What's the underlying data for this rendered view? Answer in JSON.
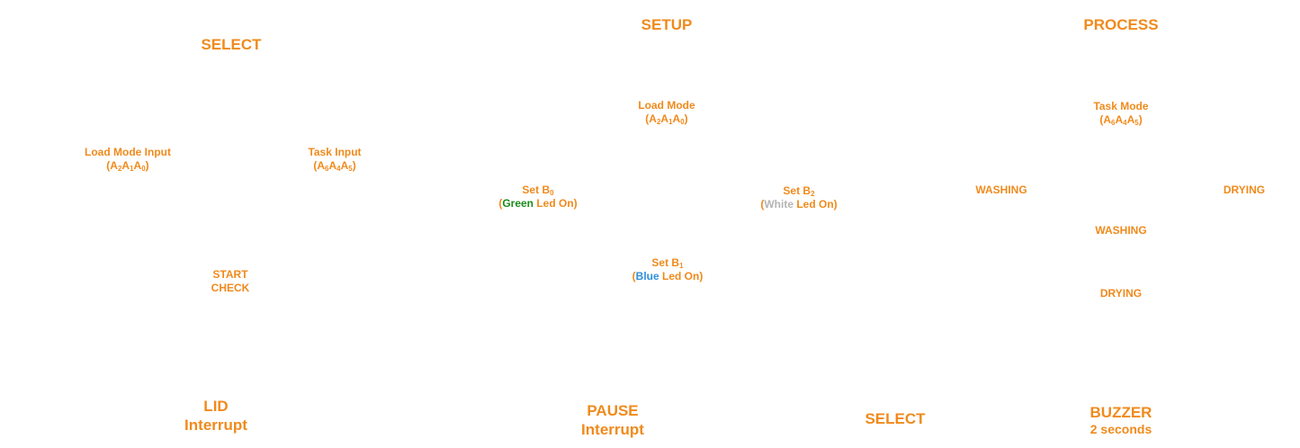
{
  "headers": {
    "select": "SELECT",
    "setup": "SETUP",
    "process": "PROCESS"
  },
  "select_block": {
    "load_mode_input": {
      "line1": "Load Mode Input",
      "paren_open": "(",
      "a2": "A",
      "s2": "2",
      "a1": "A",
      "s1": "1",
      "a0": "A",
      "s0": "0",
      "paren_close": ")"
    },
    "task_input": {
      "line1": "Task Input",
      "paren_open": "(",
      "a6": "A",
      "s6": "6",
      "a4": "A",
      "s4": "4",
      "a5": "A",
      "s5": "5",
      "paren_close": ")"
    },
    "start_check": {
      "line1": "START",
      "line2": "CHECK"
    }
  },
  "setup_block": {
    "load_mode": {
      "line1": "Load Mode",
      "paren_open": "(",
      "a2": "A",
      "s2": "2",
      "a1": "A",
      "s1": "1",
      "a0": "A",
      "s0": "0",
      "paren_close": ")"
    },
    "set_b0": {
      "label": "Set B",
      "sub": "0",
      "paren_open": "(",
      "color_word": "Green",
      "rest": " Led On)",
      "color": "#1a8a1a"
    },
    "set_b1": {
      "label": "Set B",
      "sub": "1",
      "paren_open": "(",
      "color_word": "Blue",
      "rest": " Led On)",
      "color": "#2f8fd8"
    },
    "set_b2": {
      "label": "Set B",
      "sub": "2",
      "paren_open": "(",
      "color_word": "White",
      "rest": " Led On)",
      "color": "#b4b4b4"
    }
  },
  "process_block": {
    "task_mode": {
      "line1": "Task Mode",
      "paren_open": "(",
      "a6": "A",
      "s6": "6",
      "a4": "A",
      "s4": "4",
      "a5": "A",
      "s5": "5",
      "paren_close": ")"
    },
    "washing_left": "WASHING",
    "drying_right": "DRYING",
    "washing_center": "WASHING",
    "drying_center": "DRYING"
  },
  "footer": {
    "lid": {
      "line1": "LID",
      "line2": "Interrupt"
    },
    "pause": {
      "line1": "PAUSE",
      "line2": "Interrupt"
    },
    "select": "SELECT",
    "buzzer": {
      "line1": "BUZZER",
      "line2": "2 seconds"
    }
  },
  "colors": {
    "accent": "#f08a1c",
    "green": "#1a8a1a",
    "blue": "#2f8fd8",
    "white_led": "#b4b4b4"
  }
}
